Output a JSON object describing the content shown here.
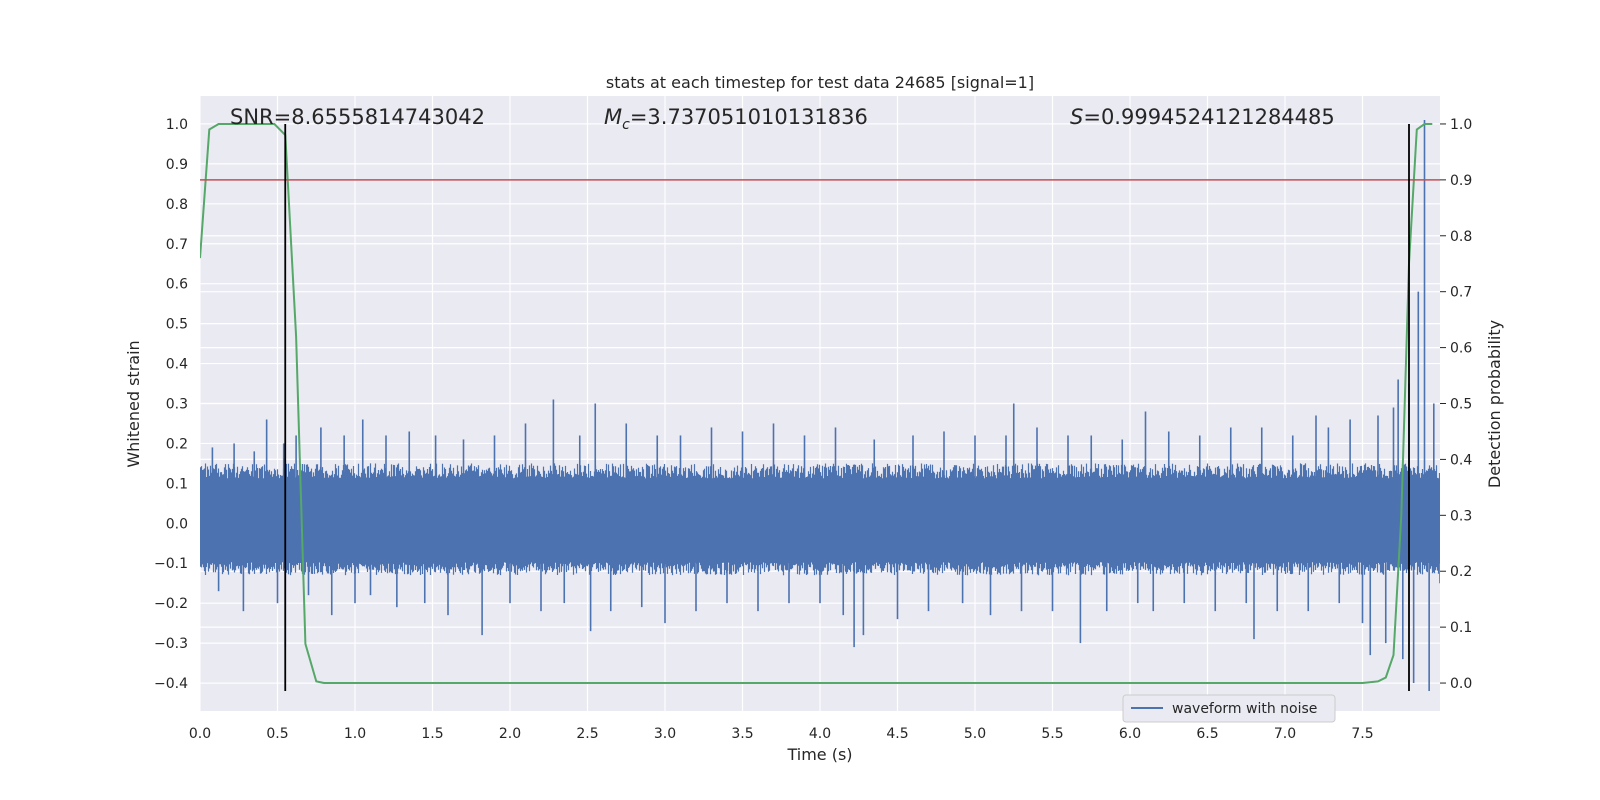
{
  "chart_data": {
    "type": "line",
    "title": "stats at each timestep for test data 24685 [signal=1]",
    "xlabel": "Time (s)",
    "ylabel": "Whitened strain",
    "y2label": "Detection probability",
    "xlim": [
      0.0,
      8.0
    ],
    "ylim": [
      -0.47,
      1.07
    ],
    "y2lim": [
      -0.05,
      1.05
    ],
    "x_ticks": [
      0.0,
      0.5,
      1.0,
      1.5,
      2.0,
      2.5,
      3.0,
      3.5,
      4.0,
      4.5,
      5.0,
      5.5,
      6.0,
      6.5,
      7.0,
      7.5
    ],
    "x_tick_labels": [
      "0.0",
      "0.5",
      "1.0",
      "1.5",
      "2.0",
      "2.5",
      "3.0",
      "3.5",
      "4.0",
      "4.5",
      "5.0",
      "5.5",
      "6.0",
      "6.5",
      "7.0",
      "7.5"
    ],
    "y_ticks": [
      1.0,
      0.9,
      0.8,
      0.7,
      0.6,
      0.5,
      0.4,
      0.3,
      0.2,
      0.1,
      0.0,
      -0.1,
      -0.2,
      -0.3,
      -0.4
    ],
    "y_tick_labels": [
      "1.0",
      "0.9",
      "0.8",
      "0.7",
      "0.6",
      "0.5",
      "0.4",
      "0.3",
      "0.2",
      "0.1",
      "0.0",
      "−0.1",
      "−0.2",
      "−0.3",
      "−0.4"
    ],
    "y2_ticks": [
      1.0,
      0.9,
      0.8,
      0.7,
      0.6,
      0.5,
      0.4,
      0.3,
      0.2,
      0.1,
      0.0
    ],
    "y2_tick_labels": [
      "1.0",
      "0.9",
      "0.8",
      "0.7",
      "0.6",
      "0.5",
      "0.4",
      "0.3",
      "0.2",
      "0.1",
      "0.0"
    ],
    "grid": true,
    "annotations": {
      "snr_label": "SNR=8.6555814743042",
      "mc_symbol": "M",
      "mc_subscript": "c",
      "mc_value": "=3.737051010131836",
      "s_symbol": "S",
      "s_value": "=0.9994524121284485"
    },
    "legend": {
      "placement": "lower-right",
      "entries": [
        "waveform with noise"
      ]
    },
    "series": [
      {
        "name": "waveform with noise",
        "axis": "left",
        "color": "#4c72b0",
        "band_low": -0.13,
        "band_high": 0.15,
        "spikes": [
          [
            0.08,
            0.19
          ],
          [
            0.12,
            -0.17
          ],
          [
            0.22,
            0.2
          ],
          [
            0.28,
            -0.22
          ],
          [
            0.35,
            0.18
          ],
          [
            0.43,
            0.26
          ],
          [
            0.5,
            -0.2
          ],
          [
            0.54,
            0.2
          ],
          [
            0.55,
            -0.31
          ],
          [
            0.62,
            0.22
          ],
          [
            0.7,
            -0.18
          ],
          [
            0.78,
            0.24
          ],
          [
            0.85,
            -0.23
          ],
          [
            0.93,
            0.22
          ],
          [
            1.0,
            -0.2
          ],
          [
            1.05,
            0.26
          ],
          [
            1.1,
            -0.18
          ],
          [
            1.2,
            0.22
          ],
          [
            1.27,
            -0.21
          ],
          [
            1.35,
            0.23
          ],
          [
            1.45,
            -0.2
          ],
          [
            1.52,
            0.22
          ],
          [
            1.6,
            -0.23
          ],
          [
            1.7,
            0.21
          ],
          [
            1.82,
            -0.28
          ],
          [
            1.9,
            0.22
          ],
          [
            2.0,
            -0.2
          ],
          [
            2.1,
            0.25
          ],
          [
            2.2,
            -0.22
          ],
          [
            2.28,
            0.31
          ],
          [
            2.35,
            -0.2
          ],
          [
            2.45,
            0.22
          ],
          [
            2.52,
            -0.27
          ],
          [
            2.55,
            0.3
          ],
          [
            2.65,
            -0.22
          ],
          [
            2.75,
            0.25
          ],
          [
            2.85,
            -0.21
          ],
          [
            2.95,
            0.22
          ],
          [
            3.0,
            -0.25
          ],
          [
            3.1,
            0.22
          ],
          [
            3.2,
            -0.22
          ],
          [
            3.3,
            0.24
          ],
          [
            3.4,
            -0.2
          ],
          [
            3.5,
            0.23
          ],
          [
            3.6,
            -0.22
          ],
          [
            3.7,
            0.25
          ],
          [
            3.8,
            -0.2
          ],
          [
            3.9,
            0.22
          ],
          [
            4.0,
            -0.2
          ],
          [
            4.1,
            0.24
          ],
          [
            4.15,
            -0.23
          ],
          [
            4.22,
            -0.31
          ],
          [
            4.28,
            -0.28
          ],
          [
            4.35,
            0.21
          ],
          [
            4.5,
            -0.24
          ],
          [
            4.6,
            0.22
          ],
          [
            4.7,
            -0.22
          ],
          [
            4.8,
            0.23
          ],
          [
            4.92,
            -0.2
          ],
          [
            5.0,
            0.22
          ],
          [
            5.1,
            -0.23
          ],
          [
            5.2,
            0.22
          ],
          [
            5.25,
            0.3
          ],
          [
            5.3,
            -0.22
          ],
          [
            5.4,
            0.24
          ],
          [
            5.5,
            -0.22
          ],
          [
            5.6,
            0.22
          ],
          [
            5.68,
            -0.3
          ],
          [
            5.75,
            0.22
          ],
          [
            5.85,
            -0.22
          ],
          [
            5.95,
            0.21
          ],
          [
            6.05,
            -0.2
          ],
          [
            6.1,
            0.28
          ],
          [
            6.15,
            -0.22
          ],
          [
            6.25,
            0.23
          ],
          [
            6.35,
            -0.2
          ],
          [
            6.45,
            0.22
          ],
          [
            6.55,
            -0.22
          ],
          [
            6.65,
            0.24
          ],
          [
            6.75,
            -0.2
          ],
          [
            6.8,
            -0.29
          ],
          [
            6.85,
            0.24
          ],
          [
            6.95,
            -0.22
          ],
          [
            7.05,
            0.22
          ],
          [
            7.15,
            -0.22
          ],
          [
            7.2,
            0.27
          ],
          [
            7.28,
            0.24
          ],
          [
            7.35,
            -0.2
          ],
          [
            7.42,
            0.26
          ],
          [
            7.5,
            -0.25
          ],
          [
            7.55,
            -0.33
          ],
          [
            7.6,
            0.27
          ],
          [
            7.65,
            -0.3
          ],
          [
            7.7,
            0.29
          ],
          [
            7.73,
            0.36
          ],
          [
            7.76,
            -0.34
          ],
          [
            7.8,
            0.35
          ],
          [
            7.83,
            -0.4
          ],
          [
            7.86,
            0.58
          ],
          [
            7.9,
            1.01
          ],
          [
            7.93,
            -0.42
          ],
          [
            7.96,
            0.3
          ],
          [
            8.0,
            -0.15
          ]
        ]
      },
      {
        "name": "",
        "axis": "right",
        "color": "#55a868",
        "x": [
          0.0,
          0.06,
          0.12,
          0.2,
          0.3,
          0.4,
          0.48,
          0.55,
          0.62,
          0.68,
          0.75,
          0.8,
          0.85,
          1.0,
          2.0,
          3.0,
          4.0,
          5.0,
          6.0,
          7.0,
          7.5,
          7.6,
          7.65,
          7.7,
          7.75,
          7.8,
          7.85,
          7.9,
          7.95
        ],
        "y": [
          0.76,
          0.99,
          1.0,
          1.0,
          1.0,
          1.0,
          1.0,
          0.98,
          0.62,
          0.07,
          0.003,
          0.0,
          0.0,
          0.0,
          0.0,
          0.0,
          0.0,
          0.0,
          0.0,
          0.0,
          0.0,
          0.003,
          0.01,
          0.05,
          0.3,
          0.75,
          0.99,
          1.0,
          1.0
        ]
      },
      {
        "name": "",
        "axis": "right",
        "color": "#c44e52",
        "type": "hline",
        "y": 0.9
      },
      {
        "name": "",
        "axis": "left",
        "color": "#000000",
        "type": "vlines",
        "x": [
          0.55,
          7.8
        ],
        "from": -0.42,
        "to": 1.0
      }
    ]
  }
}
